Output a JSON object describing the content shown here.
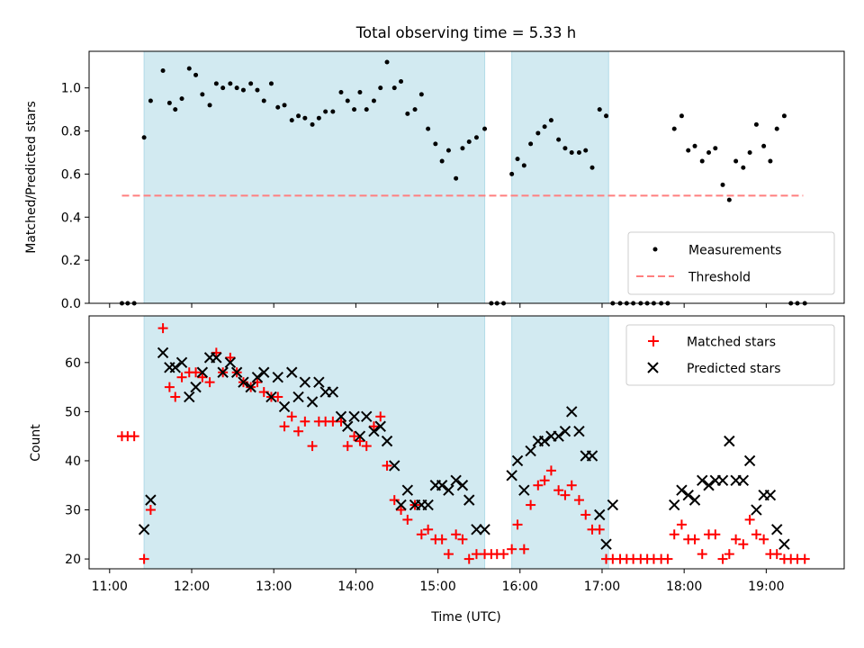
{
  "chart_data": {
    "title": "Total observing time = 5.33 h",
    "xlabel": "Time (UTC)",
    "x_unit": "hours UTC",
    "xlim": [
      10.75,
      19.95
    ],
    "xticks": [
      11,
      12,
      13,
      14,
      15,
      16,
      17,
      18,
      19
    ],
    "xtick_labels": [
      "11:00",
      "12:00",
      "13:00",
      "14:00",
      "15:00",
      "16:00",
      "17:00",
      "18:00",
      "19:00"
    ],
    "shaded_intervals": [
      [
        11.42,
        15.57
      ],
      [
        15.9,
        17.08
      ]
    ],
    "shade_color": "#add8e6",
    "panels": [
      {
        "id": "top",
        "type": "scatter",
        "ylabel": "Matched/Predicted stars",
        "ylim": [
          0,
          1.17
        ],
        "yticks": [
          0.0,
          0.2,
          0.4,
          0.6,
          0.8,
          1.0
        ],
        "ytick_labels": [
          "0.0",
          "0.2",
          "0.4",
          "0.6",
          "0.8",
          "1.0"
        ],
        "legend_position": "lower-right",
        "threshold": {
          "name": "Threshold",
          "value": 0.5,
          "x_range": [
            11.15,
            19.45
          ],
          "color": "#ff7f7f",
          "style": "dashed"
        },
        "series": [
          {
            "name": "Measurements",
            "marker": "dot",
            "color": "#000000",
            "x": [
              11.15,
              11.22,
              11.3,
              11.42,
              11.5,
              11.65,
              11.73,
              11.8,
              11.88,
              11.97,
              12.05,
              12.13,
              12.22,
              12.3,
              12.38,
              12.47,
              12.55,
              12.63,
              12.72,
              12.8,
              12.88,
              12.97,
              13.05,
              13.13,
              13.22,
              13.3,
              13.38,
              13.47,
              13.55,
              13.63,
              13.72,
              13.82,
              13.9,
              13.98,
              14.05,
              14.13,
              14.22,
              14.3,
              14.38,
              14.47,
              14.55,
              14.63,
              14.72,
              14.8,
              14.88,
              14.97,
              15.05,
              15.13,
              15.22,
              15.3,
              15.38,
              15.47,
              15.57,
              15.65,
              15.72,
              15.8,
              15.9,
              15.97,
              16.05,
              16.13,
              16.22,
              16.3,
              16.38,
              16.47,
              16.55,
              16.63,
              16.72,
              16.8,
              16.88,
              16.97,
              17.05,
              17.13,
              17.22,
              17.3,
              17.38,
              17.47,
              17.55,
              17.63,
              17.72,
              17.8,
              17.88,
              17.97,
              18.05,
              18.13,
              18.22,
              18.3,
              18.38,
              18.47,
              18.55,
              18.63,
              18.72,
              18.8,
              18.88,
              18.97,
              19.05,
              19.13,
              19.22,
              19.3,
              19.38,
              19.47
            ],
            "y": [
              0,
              0,
              0,
              0.77,
              0.94,
              1.08,
              0.93,
              0.9,
              0.95,
              1.09,
              1.06,
              0.97,
              0.92,
              1.02,
              1.0,
              1.02,
              1.0,
              0.99,
              1.02,
              0.99,
              0.94,
              1.02,
              0.91,
              0.92,
              0.85,
              0.87,
              0.86,
              0.83,
              0.86,
              0.89,
              0.89,
              0.98,
              0.94,
              0.9,
              0.98,
              0.9,
              0.94,
              1.0,
              1.12,
              1.0,
              1.03,
              0.88,
              0.9,
              0.97,
              0.81,
              0.74,
              0.66,
              0.71,
              0.58,
              0.72,
              0.75,
              0.77,
              0.81,
              0,
              0,
              0,
              0.6,
              0.67,
              0.64,
              0.74,
              0.79,
              0.82,
              0.85,
              0.76,
              0.72,
              0.7,
              0.7,
              0.71,
              0.63,
              0.9,
              0.87,
              0,
              0,
              0,
              0,
              0,
              0,
              0,
              0,
              0,
              0.81,
              0.87,
              0.71,
              0.73,
              0.66,
              0.7,
              0.72,
              0.55,
              0.48,
              0.66,
              0.63,
              0.7,
              0.83,
              0.73,
              0.66,
              0.81,
              0.87,
              0,
              0,
              0
            ]
          }
        ]
      },
      {
        "id": "bottom",
        "type": "scatter",
        "ylabel": "Count",
        "ylim": [
          18,
          69.5
        ],
        "yticks": [
          20,
          30,
          40,
          50,
          60
        ],
        "ytick_labels": [
          "20",
          "30",
          "40",
          "50",
          "60"
        ],
        "legend_position": "upper-right",
        "series": [
          {
            "name": "Matched stars",
            "marker": "plus",
            "color": "#ff0000",
            "x": [
              11.15,
              11.22,
              11.3,
              11.42,
              11.5,
              11.65,
              11.73,
              11.8,
              11.88,
              11.97,
              12.05,
              12.13,
              12.22,
              12.3,
              12.38,
              12.47,
              12.55,
              12.63,
              12.72,
              12.8,
              12.88,
              12.97,
              13.05,
              13.13,
              13.22,
              13.3,
              13.38,
              13.47,
              13.55,
              13.63,
              13.72,
              13.82,
              13.9,
              13.98,
              14.05,
              14.13,
              14.22,
              14.3,
              14.38,
              14.47,
              14.55,
              14.63,
              14.72,
              14.8,
              14.88,
              14.97,
              15.05,
              15.13,
              15.22,
              15.3,
              15.38,
              15.47,
              15.57,
              15.65,
              15.72,
              15.8,
              15.9,
              15.97,
              16.05,
              16.13,
              16.22,
              16.3,
              16.38,
              16.47,
              16.55,
              16.63,
              16.72,
              16.8,
              16.88,
              16.97,
              17.05,
              17.13,
              17.22,
              17.3,
              17.38,
              17.47,
              17.55,
              17.63,
              17.72,
              17.8,
              17.88,
              17.97,
              18.05,
              18.13,
              18.22,
              18.3,
              18.38,
              18.47,
              18.55,
              18.63,
              18.72,
              18.8,
              18.88,
              18.97,
              19.05,
              19.13,
              19.22,
              19.3,
              19.38,
              19.47
            ],
            "y": [
              45,
              45,
              45,
              20,
              30,
              67,
              55,
              53,
              57,
              58,
              58,
              57,
              56,
              62,
              58,
              61,
              58,
              56,
              55,
              56,
              54,
              53,
              53,
              47,
              49,
              46,
              48,
              43,
              48,
              48,
              48,
              48,
              43,
              45,
              44,
              43,
              47,
              49,
              39,
              32,
              30,
              28,
              31,
              25,
              26,
              24,
              24,
              21,
              25,
              24,
              20,
              21,
              21,
              21,
              21,
              21,
              22,
              27,
              22,
              31,
              35,
              36,
              38,
              34,
              33,
              35,
              32,
              29,
              26,
              26,
              20,
              20,
              20,
              20,
              20,
              20,
              20,
              20,
              20,
              20,
              25,
              27,
              24,
              24,
              21,
              25,
              25,
              20,
              21,
              24,
              23,
              28,
              25,
              24,
              21,
              21,
              20,
              20,
              20,
              20
            ]
          },
          {
            "name": "Predicted stars",
            "marker": "x",
            "color": "#000000",
            "x": [
              11.42,
              11.5,
              11.65,
              11.73,
              11.8,
              11.88,
              11.97,
              12.05,
              12.13,
              12.22,
              12.3,
              12.38,
              12.47,
              12.55,
              12.63,
              12.72,
              12.8,
              12.88,
              12.97,
              13.05,
              13.13,
              13.22,
              13.3,
              13.38,
              13.47,
              13.55,
              13.63,
              13.72,
              13.82,
              13.9,
              13.98,
              14.05,
              14.13,
              14.22,
              14.3,
              14.38,
              14.47,
              14.55,
              14.63,
              14.72,
              14.8,
              14.88,
              14.97,
              15.05,
              15.13,
              15.22,
              15.3,
              15.38,
              15.47,
              15.57,
              15.9,
              15.97,
              16.05,
              16.13,
              16.22,
              16.3,
              16.38,
              16.47,
              16.55,
              16.63,
              16.72,
              16.8,
              16.88,
              16.97,
              17.05,
              17.13,
              17.88,
              17.97,
              18.05,
              18.13,
              18.22,
              18.3,
              18.38,
              18.47,
              18.55,
              18.63,
              18.72,
              18.8,
              18.88,
              18.97,
              19.05,
              19.13,
              19.22
            ],
            "y": [
              26,
              32,
              62,
              59,
              59,
              60,
              53,
              55,
              58,
              61,
              61,
              58,
              60,
              58,
              56,
              55,
              57,
              58,
              53,
              57,
              51,
              58,
              53,
              56,
              52,
              56,
              54,
              54,
              49,
              47,
              49,
              45,
              49,
              46,
              47,
              44,
              39,
              31,
              34,
              31,
              31,
              31,
              35,
              35,
              34,
              36,
              35,
              32,
              26,
              26,
              37,
              40,
              34,
              42,
              44,
              44,
              45,
              45,
              46,
              50,
              46,
              41,
              41,
              29,
              23,
              31,
              31,
              34,
              33,
              32,
              36,
              35,
              36,
              36,
              44,
              36,
              36,
              40,
              30,
              33,
              33,
              26,
              23
            ]
          }
        ]
      }
    ]
  }
}
